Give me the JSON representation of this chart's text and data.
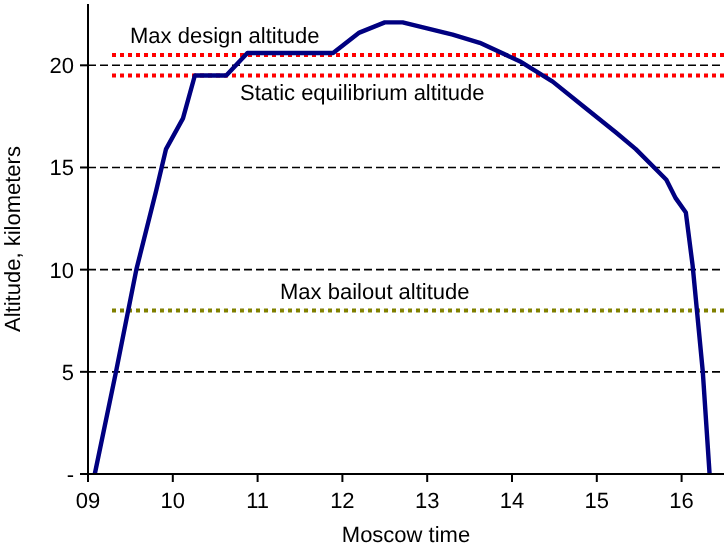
{
  "chart_data": {
    "type": "line",
    "xlabel": "Moscow time",
    "ylabel": "Altitude, kilometers",
    "series": [
      {
        "color": "#000080",
        "x": [
          9.08,
          9.33,
          9.57,
          9.8,
          9.92,
          10.12,
          10.26,
          10.63,
          10.88,
          11.89,
          12.2,
          12.5,
          12.71,
          13.3,
          13.62,
          14.09,
          14.48,
          14.87,
          15.23,
          15.46,
          15.7,
          15.82,
          15.93,
          16.05,
          16.13,
          16.25,
          16.33
        ],
        "values": [
          0,
          5,
          10,
          13.8,
          15.9,
          17.4,
          19.5,
          19.5,
          20.6,
          20.6,
          21.6,
          22.1,
          22.1,
          21.5,
          21.1,
          20.2,
          19.2,
          17.9,
          16.7,
          15.9,
          14.9,
          14.4,
          13.5,
          12.8,
          10.2,
          5,
          0
        ]
      }
    ],
    "xlim": [
      9,
      16.5
    ],
    "xticks": [
      {
        "value": 9,
        "label": "09"
      },
      10,
      11,
      12,
      13,
      14,
      15,
      16
    ],
    "ylim": [
      0,
      23
    ],
    "yticks": [
      {
        "value": 0,
        "label": "-"
      },
      5,
      10,
      15,
      20
    ],
    "grid": "y",
    "marker": "none",
    "line_style": "solid",
    "ref_lines": [
      {
        "axis": "y",
        "value": 20.5,
        "label": "Max design altitude",
        "color": "#ff0000",
        "line_style": "dotted"
      },
      {
        "axis": "y",
        "value": 19.5,
        "label": "Static equilibrium altitude",
        "color": "#ff0000",
        "line_style": "dotted"
      },
      {
        "axis": "y",
        "value": 8,
        "label": "Max bailout altitude",
        "color": "#808000",
        "line_style": "dotted"
      }
    ]
  }
}
